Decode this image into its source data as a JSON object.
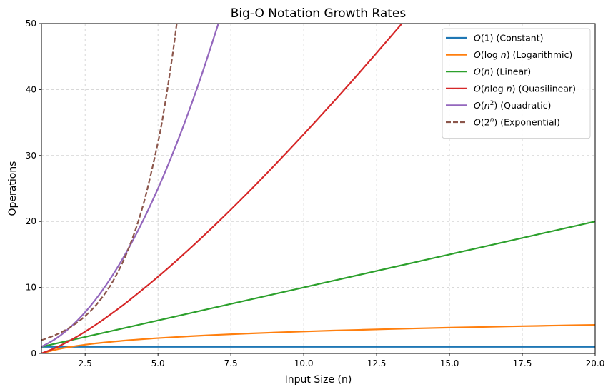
{
  "chart_data": {
    "type": "line",
    "title": "Big-O Notation Growth Rates",
    "xlabel": "Input Size (n)",
    "ylabel": "Operations",
    "xlim": [
      1,
      20
    ],
    "ylim": [
      0,
      50
    ],
    "xticks": [
      2.5,
      5.0,
      7.5,
      10.0,
      12.5,
      15.0,
      17.5,
      20.0
    ],
    "xtick_labels": [
      "2.5",
      "5.0",
      "7.5",
      "10.0",
      "12.5",
      "15.0",
      "17.5",
      "20.0"
    ],
    "yticks": [
      0,
      10,
      20,
      30,
      40,
      50
    ],
    "ytick_labels": [
      "0",
      "10",
      "20",
      "30",
      "40",
      "50"
    ],
    "grid": true,
    "legend_position": "top-right",
    "series": [
      {
        "name": "O(1) (Constant)",
        "legend_parts": [
          [
            "i",
            "O"
          ],
          [
            "n",
            "(1) (Constant)"
          ]
        ],
        "color": "#1f77b4",
        "dash": "solid",
        "x": [
          1,
          2,
          3,
          4,
          5,
          6,
          7,
          8,
          9,
          10,
          11,
          12,
          13,
          14,
          15,
          16,
          17,
          18,
          19,
          20
        ],
        "y": [
          1,
          1,
          1,
          1,
          1,
          1,
          1,
          1,
          1,
          1,
          1,
          1,
          1,
          1,
          1,
          1,
          1,
          1,
          1,
          1
        ]
      },
      {
        "name": "O(log n) (Logarithmic)",
        "legend_parts": [
          [
            "i",
            "O"
          ],
          [
            "n",
            "(log "
          ],
          [
            "i",
            "n"
          ],
          [
            "n",
            ") (Logarithmic)"
          ]
        ],
        "color": "#ff7f0e",
        "dash": "solid",
        "x": [
          1,
          1.5,
          2,
          2.5,
          3,
          4,
          5,
          6,
          7,
          8,
          9,
          10,
          11,
          12,
          13,
          14,
          15,
          16,
          17,
          18,
          19,
          20
        ],
        "y": [
          0,
          0.58,
          1,
          1.32,
          1.58,
          2,
          2.32,
          2.58,
          2.81,
          3,
          3.17,
          3.32,
          3.46,
          3.58,
          3.7,
          3.81,
          3.91,
          4,
          4.09,
          4.17,
          4.25,
          4.32
        ]
      },
      {
        "name": "O(n) (Linear)",
        "legend_parts": [
          [
            "i",
            "O"
          ],
          [
            "n",
            "("
          ],
          [
            "i",
            "n"
          ],
          [
            "n",
            ") (Linear)"
          ]
        ],
        "color": "#2ca02c",
        "dash": "solid",
        "x": [
          1,
          2,
          3,
          4,
          5,
          6,
          7,
          8,
          9,
          10,
          11,
          12,
          13,
          14,
          15,
          16,
          17,
          18,
          19,
          20
        ],
        "y": [
          1,
          2,
          3,
          4,
          5,
          6,
          7,
          8,
          9,
          10,
          11,
          12,
          13,
          14,
          15,
          16,
          17,
          18,
          19,
          20
        ]
      },
      {
        "name": "O(n log n) (Quasilinear)",
        "legend_parts": [
          [
            "i",
            "O"
          ],
          [
            "n",
            "("
          ],
          [
            "i",
            "n"
          ],
          [
            "n",
            "log "
          ],
          [
            "i",
            "n"
          ],
          [
            "n",
            ") (Quasilinear)"
          ]
        ],
        "color": "#d62728",
        "dash": "solid",
        "x": [
          1,
          1.5,
          2,
          2.5,
          3,
          3.5,
          4,
          5,
          6,
          7,
          8,
          9,
          10,
          11,
          12,
          13,
          13.4
        ],
        "y": [
          0,
          0.88,
          2,
          3.3,
          4.75,
          6.33,
          8,
          11.61,
          15.51,
          19.65,
          24,
          28.53,
          33.22,
          38.05,
          43.02,
          48.11,
          50.17
        ]
      },
      {
        "name": "O(n²) (Quadratic)",
        "legend_parts": [
          [
            "i",
            "O"
          ],
          [
            "n",
            "("
          ],
          [
            "i",
            "n"
          ],
          [
            "s",
            "2"
          ],
          [
            "n",
            ") (Quadratic)"
          ]
        ],
        "color": "#9467bd",
        "dash": "solid",
        "x": [
          1,
          1.5,
          2,
          2.5,
          3,
          3.5,
          4,
          4.5,
          5,
          5.5,
          6,
          6.5,
          7,
          7.1
        ],
        "y": [
          1,
          2.25,
          4,
          6.25,
          9,
          12.25,
          16,
          20.25,
          25,
          30.25,
          36,
          42.25,
          49,
          50.41
        ]
      },
      {
        "name": "O(2ⁿ) (Exponential)",
        "legend_parts": [
          [
            "i",
            "O"
          ],
          [
            "n",
            "(2"
          ],
          [
            "si",
            "n"
          ],
          [
            "n",
            ") (Exponential)"
          ]
        ],
        "color": "#8c564b",
        "dash": "dashed",
        "x": [
          1,
          1.5,
          2,
          2.5,
          3,
          3.5,
          4,
          4.5,
          5,
          5.25,
          5.5,
          5.65
        ],
        "y": [
          2,
          2.83,
          4,
          5.66,
          8,
          11.31,
          16,
          22.63,
          32,
          38.05,
          45.25,
          50.21
        ]
      }
    ]
  }
}
